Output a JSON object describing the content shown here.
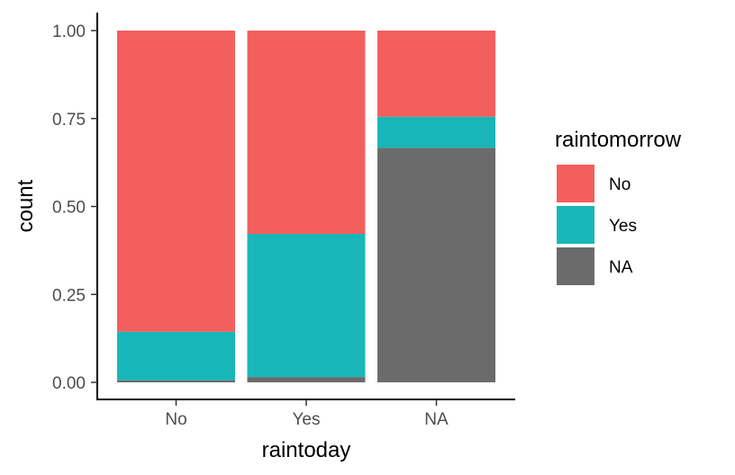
{
  "chart_data": {
    "type": "bar",
    "stacked": "fill",
    "xlabel": "raintoday",
    "ylabel": "count",
    "categories": [
      "No",
      "Yes",
      "NA"
    ],
    "ylim": [
      0,
      1
    ],
    "y_ticks": [
      "0.00",
      "0.25",
      "0.50",
      "0.75",
      "1.00"
    ],
    "series": [
      {
        "name": "NA",
        "color": "#6b6b6b",
        "values": [
          0.006,
          0.015,
          0.667
        ]
      },
      {
        "name": "Yes",
        "color": "#19b6b9",
        "values": [
          0.138,
          0.407,
          0.088
        ]
      },
      {
        "name": "No",
        "color": "#f35f5c",
        "values": [
          0.856,
          0.578,
          0.245
        ]
      }
    ],
    "legend": {
      "title": "raintomorrow",
      "position": "right",
      "items": [
        {
          "label": "No",
          "color": "#f35f5c"
        },
        {
          "label": "Yes",
          "color": "#19b6b9"
        },
        {
          "label": "NA",
          "color": "#6b6b6b"
        }
      ]
    },
    "grid": false
  }
}
